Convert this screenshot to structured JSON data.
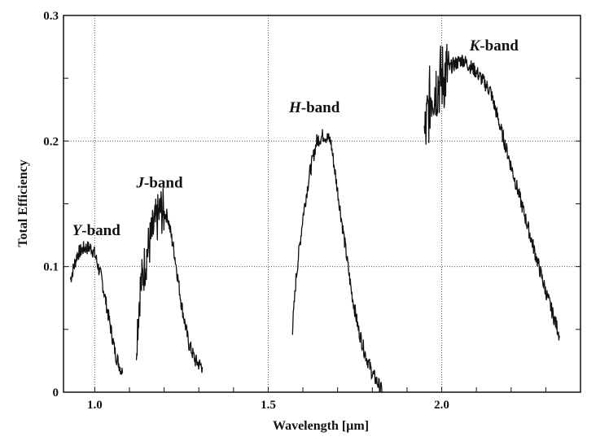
{
  "chart_data": {
    "type": "line",
    "title": "",
    "xlabel": "Wavelength [µm]",
    "ylabel": "Total Efficiency",
    "xlim": [
      0.91,
      2.4
    ],
    "ylim": [
      0,
      0.3
    ],
    "xticks": [
      {
        "v": 1.0,
        "label": "1.0"
      },
      {
        "v": 1.5,
        "label": "1.5"
      },
      {
        "v": 2.0,
        "label": "2.0"
      }
    ],
    "yticks": [
      {
        "v": 0,
        "label": "0"
      },
      {
        "v": 0.1,
        "label": "0.1"
      },
      {
        "v": 0.2,
        "label": "0.2"
      },
      {
        "v": 0.3,
        "label": "0.3"
      }
    ],
    "grid": true,
    "series_color": "#111111",
    "annotations": [
      {
        "letter": "Y",
        "text": "-band",
        "x": 0.935,
        "y": 0.125
      },
      {
        "letter": "J",
        "text": "-band",
        "x": 1.12,
        "y": 0.163
      },
      {
        "letter": "H",
        "text": "-band",
        "x": 1.56,
        "y": 0.223
      },
      {
        "letter": "K",
        "text": "-band",
        "x": 2.08,
        "y": 0.272
      }
    ],
    "series": [
      {
        "points": [
          [
            0.93,
            0.09
          ],
          [
            0.94,
            0.1
          ],
          [
            0.95,
            0.11
          ],
          [
            0.97,
            0.115
          ],
          [
            0.99,
            0.115
          ],
          [
            1.0,
            0.11
          ],
          [
            1.02,
            0.09
          ],
          [
            1.04,
            0.06
          ],
          [
            1.06,
            0.03
          ],
          [
            1.08,
            0.015
          ]
        ]
      },
      {
        "points": [
          [
            1.12,
            0.04
          ],
          [
            1.13,
            0.08
          ],
          [
            1.15,
            0.11
          ],
          [
            1.17,
            0.13
          ],
          [
            1.19,
            0.145
          ],
          [
            1.21,
            0.14
          ],
          [
            1.23,
            0.11
          ],
          [
            1.25,
            0.07
          ],
          [
            1.27,
            0.04
          ],
          [
            1.29,
            0.025
          ],
          [
            1.31,
            0.02
          ]
        ]
      },
      {
        "points": [
          [
            1.57,
            0.05
          ],
          [
            1.58,
            0.09
          ],
          [
            1.6,
            0.14
          ],
          [
            1.62,
            0.175
          ],
          [
            1.64,
            0.2
          ],
          [
            1.66,
            0.205
          ],
          [
            1.68,
            0.2
          ],
          [
            1.7,
            0.16
          ],
          [
            1.72,
            0.12
          ],
          [
            1.74,
            0.08
          ],
          [
            1.76,
            0.05
          ],
          [
            1.78,
            0.03
          ],
          [
            1.8,
            0.015
          ],
          [
            1.83,
            0.0
          ]
        ]
      },
      {
        "points": [
          [
            1.95,
            0.2
          ],
          [
            1.97,
            0.24
          ],
          [
            2.0,
            0.25
          ],
          [
            2.03,
            0.26
          ],
          [
            2.06,
            0.265
          ],
          [
            2.1,
            0.255
          ],
          [
            2.14,
            0.24
          ],
          [
            2.18,
            0.2
          ],
          [
            2.22,
            0.16
          ],
          [
            2.26,
            0.12
          ],
          [
            2.3,
            0.08
          ],
          [
            2.34,
            0.045
          ]
        ]
      }
    ]
  }
}
